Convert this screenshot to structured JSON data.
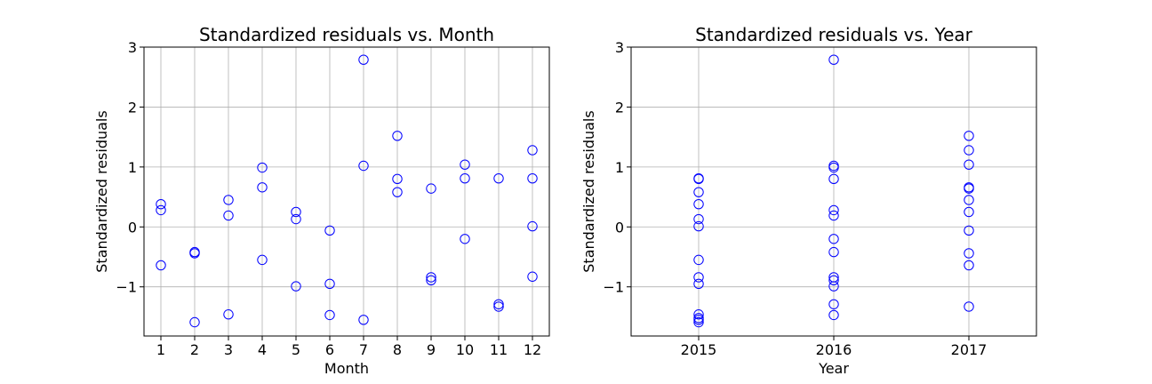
{
  "colors": {
    "marker": "#0000ff",
    "grid": "#b0b0b0",
    "frame": "#000000"
  },
  "chart_data": [
    {
      "type": "scatter",
      "title": "Standardized residuals vs. Month",
      "xlabel": "Month",
      "ylabel": "Standardized residuals",
      "xlim": [
        0.5,
        12.5
      ],
      "ylim": [
        -1.82,
        3.0
      ],
      "xticks": [
        1,
        2,
        3,
        4,
        5,
        6,
        7,
        8,
        9,
        10,
        11,
        12
      ],
      "xticklabels": [
        "1",
        "2",
        "3",
        "4",
        "5",
        "6",
        "7",
        "8",
        "9",
        "10",
        "11",
        "12"
      ],
      "yticks": [
        -1,
        0,
        1,
        2,
        3
      ],
      "yticklabels": [
        "−1",
        "0",
        "1",
        "2",
        "3"
      ],
      "grid": true,
      "marker": "open-circle",
      "series": [
        {
          "x": [
            1,
            1,
            1,
            2,
            2,
            2,
            3,
            3,
            3,
            4,
            4,
            4,
            5,
            5,
            5,
            6,
            6,
            6,
            7,
            7,
            7,
            8,
            8,
            8,
            9,
            9,
            9,
            10,
            10,
            10,
            11,
            11,
            11,
            12,
            12,
            12,
            12
          ],
          "y": [
            0.38,
            0.28,
            -0.64,
            -0.42,
            -0.44,
            -1.59,
            0.45,
            0.19,
            -1.46,
            0.99,
            0.66,
            -0.55,
            0.25,
            0.13,
            -0.99,
            -0.06,
            -0.95,
            -1.47,
            2.79,
            1.02,
            -1.55,
            1.52,
            0.8,
            0.58,
            0.64,
            -0.84,
            -0.89,
            1.04,
            0.81,
            -0.2,
            0.81,
            -1.29,
            -1.33,
            1.28,
            0.81,
            0.01,
            -0.83
          ]
        }
      ]
    },
    {
      "type": "scatter",
      "title": "Standardized residuals vs. Year",
      "xlabel": "Year",
      "ylabel": "Standardized residuals",
      "xlim": [
        2014.5,
        2017.5
      ],
      "ylim": [
        -1.82,
        3.0
      ],
      "xticks": [
        2015,
        2016,
        2017
      ],
      "xticklabels": [
        "2015",
        "2016",
        "2017"
      ],
      "yticks": [
        -1,
        0,
        1,
        2,
        3
      ],
      "yticklabels": [
        "−1",
        "0",
        "1",
        "2",
        "3"
      ],
      "grid": true,
      "marker": "open-circle",
      "series": [
        {
          "x": [
            2015,
            2015,
            2015,
            2015,
            2015,
            2015,
            2015,
            2015,
            2015,
            2015,
            2015,
            2015,
            2015,
            2016,
            2016,
            2016,
            2016,
            2016,
            2016,
            2016,
            2016,
            2016,
            2016,
            2016,
            2016,
            2016,
            2017,
            2017,
            2017,
            2017,
            2017,
            2017,
            2017,
            2017,
            2017,
            2017,
            2017
          ],
          "y": [
            0.81,
            0.8,
            0.58,
            0.38,
            0.13,
            0.01,
            -0.55,
            -0.84,
            -0.95,
            -1.46,
            -1.55,
            -1.59,
            -1.52,
            1.02,
            0.99,
            0.8,
            0.28,
            0.19,
            -0.2,
            -0.42,
            -0.84,
            -0.89,
            -0.99,
            -1.29,
            -1.47,
            2.79,
            1.52,
            1.28,
            1.04,
            0.66,
            0.64,
            0.45,
            0.25,
            -0.06,
            -0.44,
            -0.64,
            -1.33
          ]
        }
      ]
    }
  ]
}
